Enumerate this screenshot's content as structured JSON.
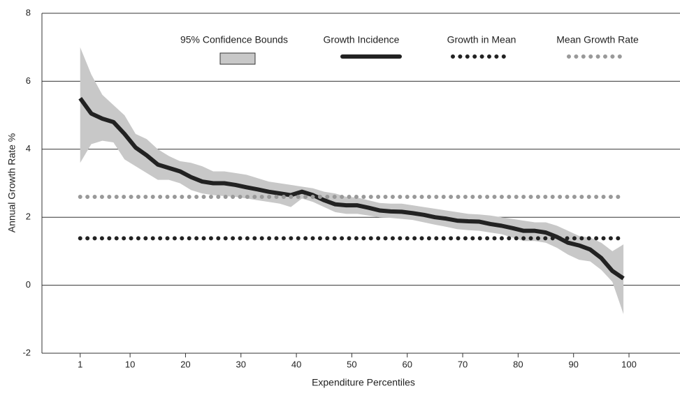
{
  "chart_data": {
    "type": "line",
    "xlabel": "Expenditure Percentiles",
    "ylabel": "Annual Growth Rate %",
    "xlim": [
      -5.9,
      109.2
    ],
    "ylim": [
      -2,
      8
    ],
    "xticks": [
      1,
      10,
      20,
      30,
      40,
      50,
      60,
      70,
      80,
      90,
      100
    ],
    "yticks": [
      -2,
      0,
      2,
      4,
      6,
      8
    ],
    "grid": true,
    "x": [
      1,
      3,
      5,
      7,
      9,
      11,
      13,
      15,
      17,
      19,
      21,
      23,
      25,
      27,
      29,
      31,
      33,
      35,
      37,
      39,
      41,
      43,
      45,
      47,
      49,
      51,
      53,
      55,
      57,
      59,
      61,
      63,
      65,
      67,
      69,
      71,
      73,
      75,
      77,
      79,
      81,
      83,
      85,
      87,
      89,
      91,
      93,
      95,
      97,
      99
    ],
    "series": [
      {
        "name": "95% Confidence Bounds",
        "style": "band",
        "color": "#c8c8c8",
        "upper": [
          7.0,
          6.2,
          5.6,
          5.3,
          5.0,
          4.45,
          4.3,
          4.0,
          3.8,
          3.65,
          3.6,
          3.5,
          3.35,
          3.35,
          3.3,
          3.25,
          3.15,
          3.05,
          3.0,
          2.95,
          2.9,
          2.85,
          2.75,
          2.7,
          2.6,
          2.58,
          2.5,
          2.42,
          2.4,
          2.4,
          2.35,
          2.3,
          2.25,
          2.2,
          2.15,
          2.1,
          2.08,
          2.05,
          2.0,
          1.95,
          1.9,
          1.85,
          1.85,
          1.75,
          1.6,
          1.45,
          1.4,
          1.25,
          1.0,
          1.2
        ],
        "lower": [
          3.6,
          4.15,
          4.25,
          4.2,
          3.7,
          3.5,
          3.3,
          3.1,
          3.1,
          3.0,
          2.8,
          2.7,
          2.65,
          2.62,
          2.6,
          2.55,
          2.5,
          2.45,
          2.4,
          2.3,
          2.55,
          2.45,
          2.3,
          2.15,
          2.1,
          2.1,
          2.05,
          2.0,
          1.98,
          1.95,
          1.92,
          1.85,
          1.78,
          1.72,
          1.65,
          1.62,
          1.6,
          1.55,
          1.5,
          1.4,
          1.3,
          1.3,
          1.25,
          1.1,
          0.9,
          0.75,
          0.7,
          0.45,
          0.1,
          -0.85
        ]
      },
      {
        "name": "Growth Incidence",
        "style": "line",
        "color": "#222222",
        "values": [
          5.5,
          5.05,
          4.9,
          4.8,
          4.45,
          4.05,
          3.82,
          3.55,
          3.45,
          3.35,
          3.18,
          3.05,
          3.0,
          3.0,
          2.95,
          2.88,
          2.82,
          2.75,
          2.7,
          2.65,
          2.75,
          2.65,
          2.5,
          2.38,
          2.35,
          2.35,
          2.28,
          2.2,
          2.17,
          2.16,
          2.12,
          2.07,
          2.0,
          1.96,
          1.9,
          1.88,
          1.87,
          1.8,
          1.75,
          1.68,
          1.6,
          1.6,
          1.55,
          1.42,
          1.25,
          1.17,
          1.05,
          0.8,
          0.42,
          0.2
        ]
      },
      {
        "name": "Growth in Mean",
        "style": "dotted",
        "color": "#222222",
        "x": [
          1,
          99
        ],
        "values": [
          1.38,
          1.38
        ]
      },
      {
        "name": "Mean Growth Rate",
        "style": "dotted",
        "color": "#999999",
        "x": [
          1,
          99
        ],
        "values": [
          2.6,
          2.6
        ]
      }
    ]
  }
}
